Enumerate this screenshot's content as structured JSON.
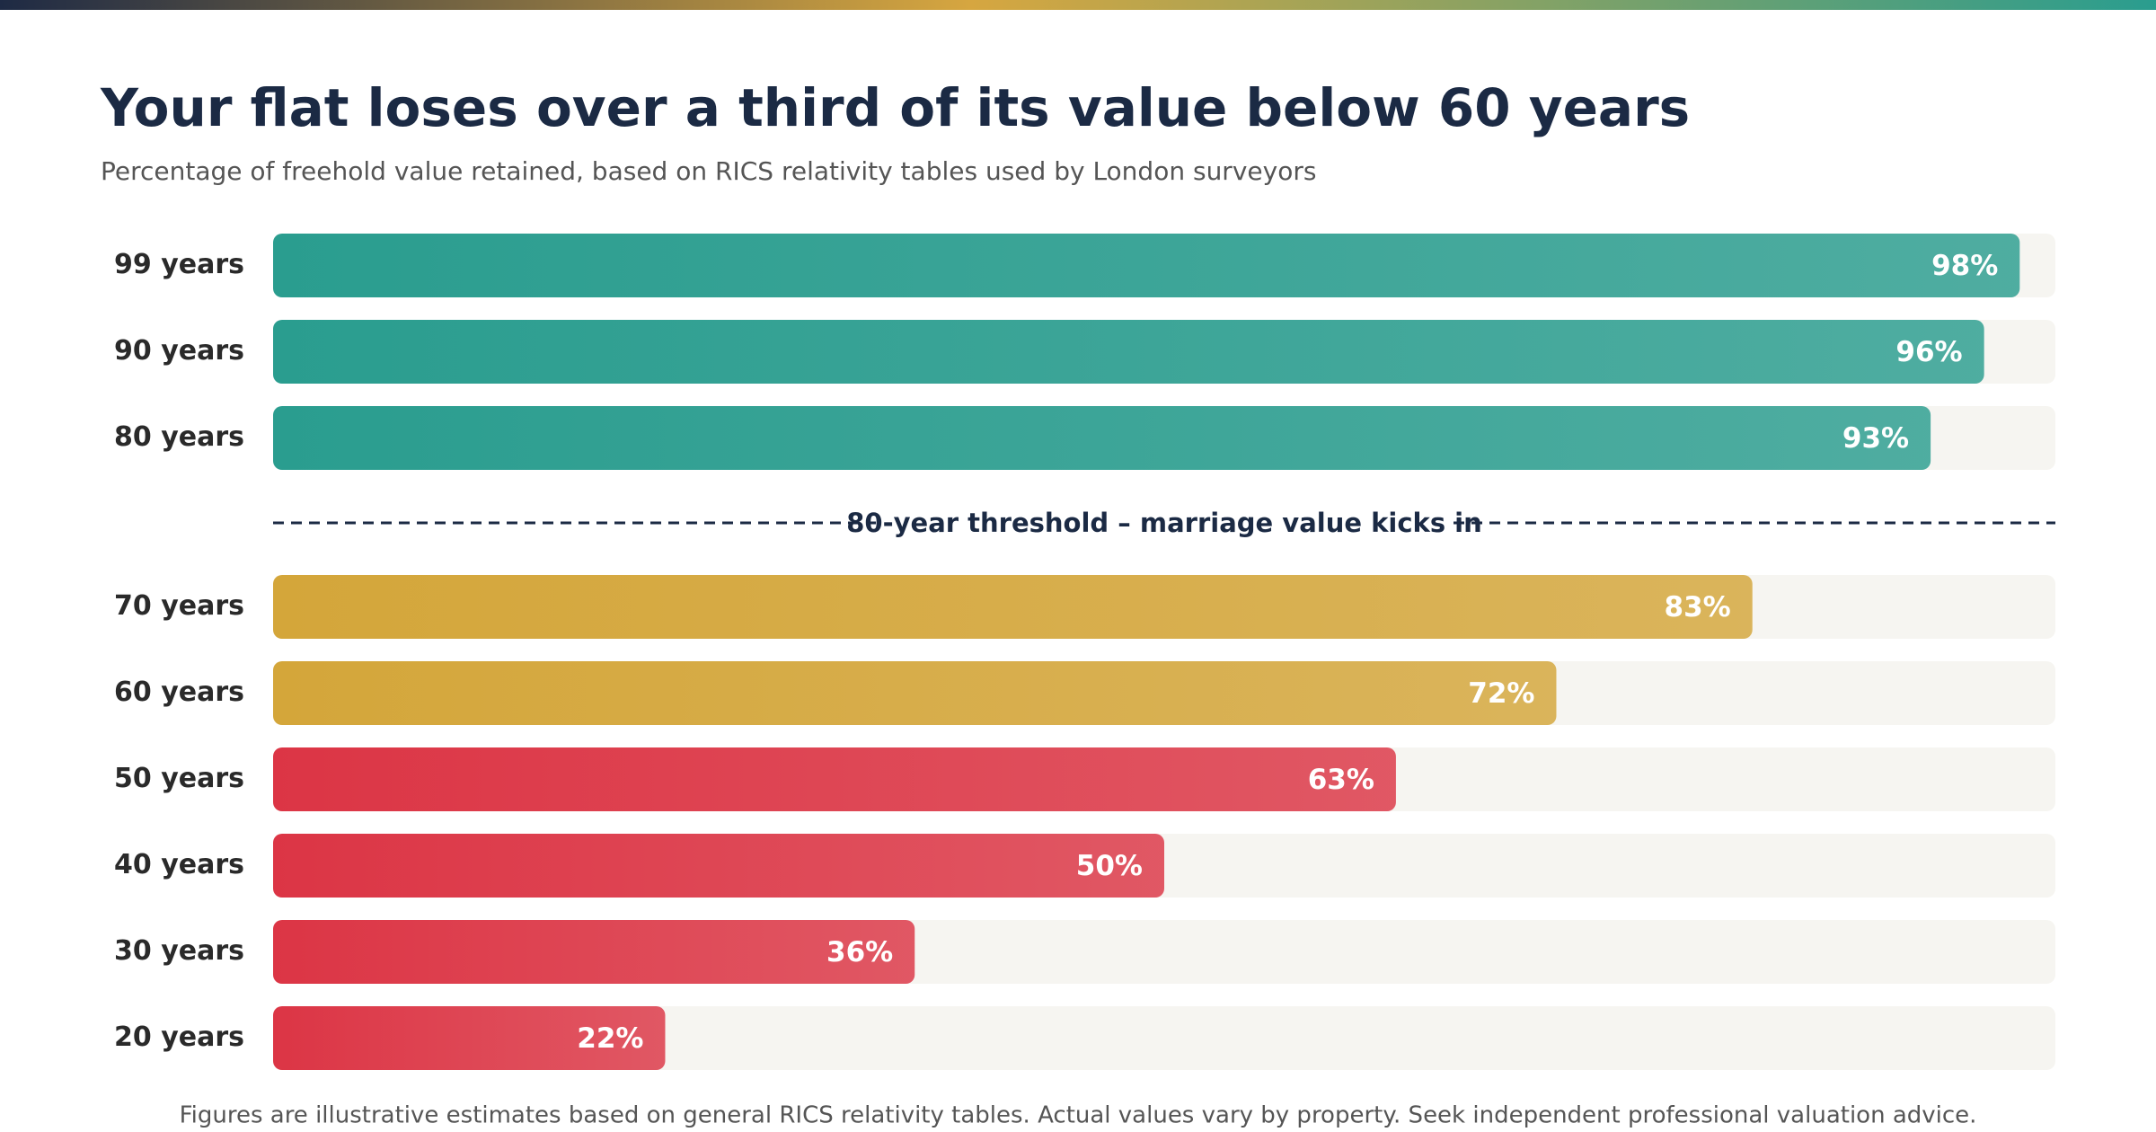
{
  "chart_data": {
    "type": "hbar",
    "title": "Your flat loses over a third of its value below 60 years",
    "subtitle": "Percentage of freehold value retained, based on RICS relativity tables used by London surveyors",
    "categories": [
      "99 years",
      "90 years",
      "80 years",
      "70 years",
      "60 years",
      "50 years",
      "40 years",
      "30 years",
      "20 years"
    ],
    "values": [
      98,
      96,
      93,
      83,
      72,
      63,
      50,
      36,
      22
    ],
    "value_labels": [
      "98%",
      "96%",
      "93%",
      "83%",
      "72%",
      "63%",
      "50%",
      "36%",
      "22%"
    ],
    "colors": [
      "#2a9d8f",
      "#2a9d8f",
      "#2a9d8f",
      "#d4a63a",
      "#d4a63a",
      "#dc3545",
      "#dc3545",
      "#dc3545",
      "#dc3545"
    ],
    "xlim": [
      0,
      100
    ],
    "annotation": "80-year threshold – marriage value kicks in",
    "note": "Figures are illustrative estimates based on general RICS relativity tables. Actual values vary by property. Seek independent professional valuation advice."
  }
}
